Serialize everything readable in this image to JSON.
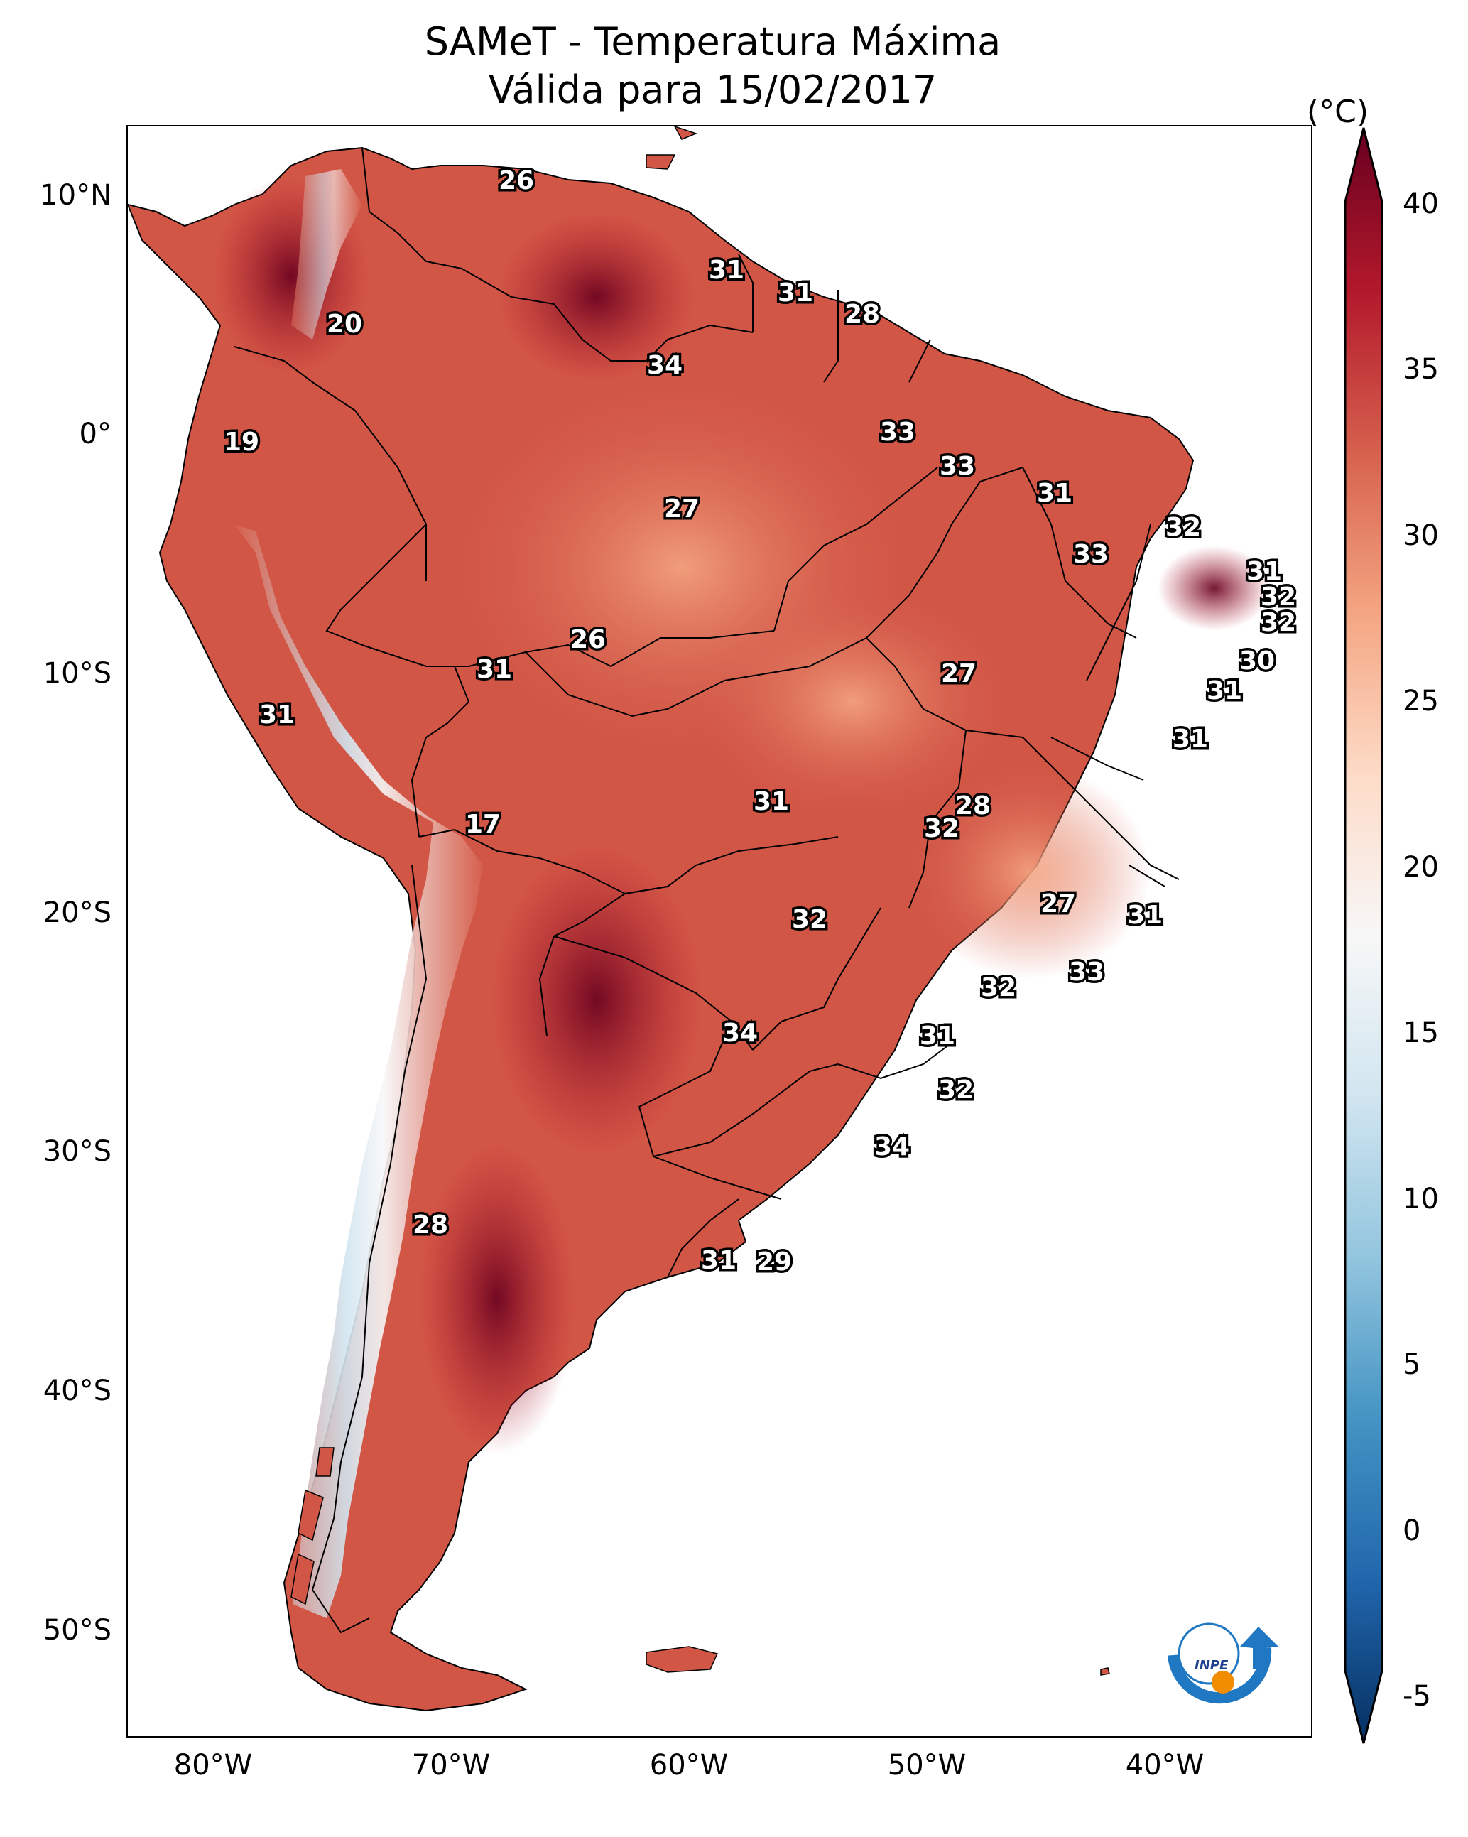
{
  "title": {
    "line1": "SAMeT - Temperatura Máxima",
    "line2": "Válida para 15/02/2017"
  },
  "colorbar": {
    "unit": "(°C)",
    "ticks": [
      "40",
      "35",
      "30",
      "25",
      "20",
      "15",
      "10",
      "5",
      "0",
      "-5"
    ],
    "range": [
      -5,
      40
    ],
    "colors": [
      "#053061",
      "#2166ac",
      "#4393c3",
      "#92c5de",
      "#d1e5f0",
      "#f7f7f7",
      "#fddbc7",
      "#f4a582",
      "#d6604d",
      "#b2182b",
      "#67001f"
    ]
  },
  "axes": {
    "lat_labels": [
      "10°N",
      "0°",
      "10°S",
      "20°S",
      "30°S",
      "40°S",
      "50°S"
    ],
    "lon_labels": [
      "80°W",
      "70°W",
      "60°W",
      "50°W",
      "40°W"
    ]
  },
  "station_labels": [
    "26",
    "31",
    "31",
    "28",
    "20",
    "34",
    "19",
    "33",
    "33",
    "31",
    "27",
    "32",
    "33",
    "31",
    "32",
    "32",
    "30",
    "26",
    "31",
    "27",
    "31",
    "31",
    "31",
    "31",
    "28",
    "32",
    "17",
    "27",
    "31",
    "32",
    "33",
    "32",
    "34",
    "31",
    "32",
    "34",
    "28",
    "31",
    "29"
  ],
  "logo": {
    "text": "INPE"
  }
}
